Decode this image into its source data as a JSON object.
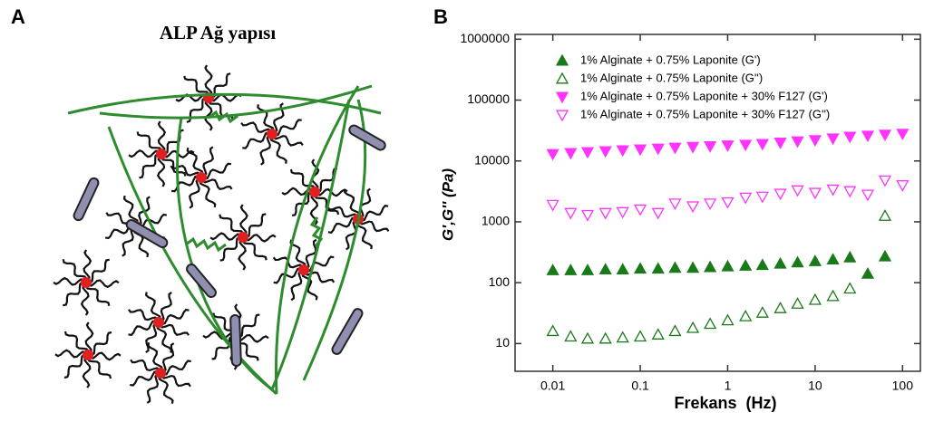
{
  "panel_a": {
    "label": "A",
    "title": "ALP Ağ yapısı"
  },
  "chart_data": {
    "type": "scatter",
    "panel_label": "B",
    "x_label": "Frekans  (Hz)",
    "y_label": "G',G'' (Pa)",
    "x_log": true,
    "y_log": true,
    "xlim": [
      0.0037,
      160
    ],
    "ylim": [
      3.5,
      1200000
    ],
    "xticks": [
      0.01,
      0.1,
      1,
      10,
      100
    ],
    "yticks": [
      10,
      100,
      1000,
      10000,
      100000,
      1000000
    ],
    "legend": "upper left",
    "series": [
      {
        "name": "1% Alginate + 0.75% Laponite (G')",
        "color": "#1a7a1a",
        "marker": "triangle-up",
        "filled": true,
        "x": [
          0.01,
          0.016,
          0.025,
          0.04,
          0.063,
          0.1,
          0.16,
          0.25,
          0.4,
          0.63,
          1,
          1.6,
          2.5,
          4,
          6.3,
          10,
          16,
          25,
          40,
          63
        ],
        "values": [
          160,
          160,
          160,
          165,
          165,
          170,
          170,
          175,
          175,
          180,
          185,
          190,
          195,
          205,
          215,
          225,
          240,
          260,
          140,
          270
        ]
      },
      {
        "name": "1% Alginate + 0.75% Laponite (G'')",
        "color": "#1a7a1a",
        "marker": "triangle-up",
        "filled": false,
        "x": [
          0.01,
          0.016,
          0.025,
          0.04,
          0.063,
          0.1,
          0.16,
          0.25,
          0.4,
          0.63,
          1,
          1.6,
          2.5,
          4,
          6.3,
          10,
          16,
          25,
          63
        ],
        "values": [
          16,
          13,
          12,
          12,
          12.5,
          13,
          14,
          16,
          18,
          21,
          24,
          28,
          32,
          38,
          45,
          52,
          60,
          80,
          1250
        ]
      },
      {
        "name": "1% Alginate + 0.75% Laponite + 30% F127 (G')",
        "color": "#ff33ff",
        "marker": "triangle-down",
        "filled": true,
        "x": [
          0.01,
          0.016,
          0.025,
          0.04,
          0.063,
          0.1,
          0.16,
          0.25,
          0.4,
          0.63,
          1,
          1.6,
          2.5,
          4,
          6.3,
          10,
          16,
          25,
          40,
          63,
          100
        ],
        "values": [
          13000,
          13500,
          14000,
          14500,
          15000,
          15500,
          16000,
          16500,
          17000,
          17500,
          18000,
          18500,
          19000,
          20000,
          21000,
          22000,
          23500,
          25000,
          26000,
          27000,
          28000
        ]
      },
      {
        "name": "1% Alginate + 0.75% Laponite + 30% F127 (G'')",
        "color": "#ff33ff",
        "marker": "triangle-down",
        "filled": false,
        "x": [
          0.01,
          0.016,
          0.025,
          0.04,
          0.063,
          0.1,
          0.16,
          0.25,
          0.4,
          0.63,
          1,
          1.6,
          2.5,
          4,
          6.3,
          10,
          16,
          25,
          40,
          63,
          100
        ],
        "values": [
          1900,
          1400,
          1300,
          1400,
          1450,
          1600,
          1400,
          2000,
          1800,
          2000,
          2100,
          2500,
          2600,
          2900,
          3300,
          3000,
          3400,
          3200,
          2800,
          4800,
          4000
        ]
      }
    ]
  }
}
